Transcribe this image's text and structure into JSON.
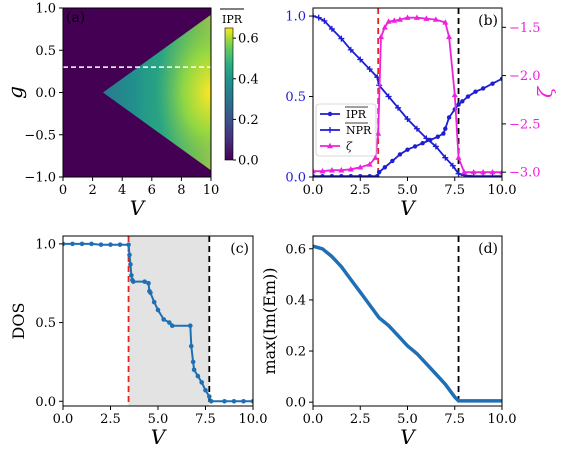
{
  "chart_data": [
    {
      "panel": "(a)",
      "type": "heatmap",
      "xlabel": "V",
      "ylabel": "g",
      "xlim": [
        0,
        10
      ],
      "ylim": [
        -1,
        1
      ],
      "xticks": [
        "0",
        "2",
        "4",
        "6",
        "8",
        "10"
      ],
      "yticks": [
        "−1.0",
        "−0.5",
        "0.0",
        "0.5",
        "1.0"
      ],
      "colorbar": {
        "label": "IPR",
        "ticks": [
          "0.0",
          "0.2",
          "0.4",
          "0.6"
        ],
        "range": [
          0,
          0.65
        ],
        "colormap": "viridis"
      },
      "region": {
        "description_points": {
          "vertex_V": 2.7,
          "edge_g_at_V10": 0.92
        },
        "max_value": 0.65
      },
      "dashed_line_g": 0.3,
      "dashed_color": "#ffffff"
    },
    {
      "panel": "(b)",
      "type": "line",
      "xlabel": "V",
      "ylabel_right": "ζ",
      "xlim": [
        0,
        10
      ],
      "ylim": [
        0,
        1.05
      ],
      "ylim_right": [
        -3.05,
        -1.3
      ],
      "xticks": [
        "0.0",
        "2.5",
        "5.0",
        "7.5",
        "10.0"
      ],
      "yticks": [
        "0.0",
        "0.5",
        "1.0"
      ],
      "yticks_right": [
        "−3.0",
        "−2.5",
        "−2.0",
        "−1.5"
      ],
      "legend": [
        "IPR",
        "NPR",
        "ζ"
      ],
      "legend_position": "lower-left",
      "vlines": [
        {
          "x": 3.45,
          "color": "#e8241c"
        },
        {
          "x": 7.7,
          "color": "#000000"
        }
      ],
      "series": [
        {
          "name": "IPR",
          "color": "#1d1dd6",
          "marker": "dot",
          "x": [
            0,
            0.5,
            1,
            1.5,
            2,
            2.5,
            3,
            3.4,
            3.5,
            3.8,
            4.2,
            4.6,
            5,
            5.4,
            5.8,
            6.2,
            6.6,
            6.9,
            7.0,
            7.2,
            7.5,
            7.7,
            7.9,
            8.2,
            8.6,
            9,
            9.5,
            10
          ],
          "y": [
            0.005,
            0.005,
            0.005,
            0.005,
            0.005,
            0.005,
            0.005,
            0.005,
            0.03,
            0.06,
            0.1,
            0.14,
            0.17,
            0.19,
            0.21,
            0.23,
            0.25,
            0.27,
            0.3,
            0.37,
            0.42,
            0.45,
            0.47,
            0.5,
            0.53,
            0.55,
            0.58,
            0.61
          ]
        },
        {
          "name": "NPR",
          "color": "#1d1dd6",
          "marker": "plus",
          "x": [
            0,
            0.3,
            0.6,
            1,
            1.5,
            2,
            2.5,
            3,
            3.4,
            3.5,
            4,
            4.5,
            5,
            5.5,
            6,
            6.5,
            7,
            7.4,
            7.7,
            8,
            8.5,
            9,
            9.5,
            10
          ],
          "y": [
            1.0,
            0.99,
            0.97,
            0.92,
            0.86,
            0.79,
            0.73,
            0.67,
            0.62,
            0.57,
            0.5,
            0.43,
            0.36,
            0.3,
            0.24,
            0.19,
            0.12,
            0.07,
            0.02,
            0.01,
            0.005,
            0.005,
            0.005,
            0.005
          ]
        },
        {
          "name": "ζ",
          "color": "#ee22dd",
          "marker": "triangle",
          "axis": "right",
          "x": [
            0,
            0.5,
            1,
            1.5,
            2,
            2.5,
            3,
            3.3,
            3.45,
            3.6,
            3.8,
            4,
            4.3,
            4.6,
            5,
            5.5,
            6,
            6.5,
            7,
            7.2,
            7.5,
            7.7,
            8,
            8.5,
            9,
            9.5,
            10
          ],
          "y": [
            -2.99,
            -2.99,
            -2.98,
            -2.98,
            -2.97,
            -2.95,
            -2.92,
            -2.85,
            -2.6,
            -1.6,
            -1.5,
            -1.44,
            -1.43,
            -1.42,
            -1.4,
            -1.4,
            -1.41,
            -1.42,
            -1.45,
            -1.6,
            -2.2,
            -2.85,
            -3.0,
            -3.0,
            -3.0,
            -3.0,
            -3.0
          ]
        }
      ]
    },
    {
      "panel": "(c)",
      "type": "line",
      "xlabel": "V",
      "ylabel": "DOS",
      "xlim": [
        0,
        10
      ],
      "ylim": [
        -0.03,
        1.05
      ],
      "xticks": [
        "0.0",
        "2.5",
        "5.0",
        "7.5",
        "10.0"
      ],
      "yticks": [
        "0.0",
        "0.5",
        "1.0"
      ],
      "shaded_region": [
        3.45,
        7.7
      ],
      "vlines": [
        {
          "x": 3.45,
          "color": "#e8241c"
        },
        {
          "x": 7.7,
          "color": "#000000"
        }
      ],
      "series": [
        {
          "color": "#1f6fb5",
          "x": [
            0,
            0.5,
            1,
            1.5,
            2,
            2.5,
            3,
            3.45,
            3.5,
            3.55,
            3.6,
            3.65,
            3.7,
            4.3,
            4.5,
            4.55,
            4.6,
            4.8,
            5.0,
            5.3,
            5.6,
            5.75,
            6.7,
            6.75,
            6.85,
            6.9,
            7.1,
            7.3,
            7.5,
            7.7,
            7.8,
            8.5,
            9,
            9.5,
            10
          ],
          "y": [
            1.0,
            1.0,
            1.0,
            1.0,
            0.995,
            0.995,
            0.995,
            0.995,
            0.93,
            0.87,
            0.8,
            0.77,
            0.76,
            0.76,
            0.75,
            0.7,
            0.69,
            0.63,
            0.58,
            0.52,
            0.5,
            0.48,
            0.48,
            0.35,
            0.25,
            0.2,
            0.16,
            0.12,
            0.07,
            0.03,
            0.0,
            0.0,
            0.0,
            0.0,
            0.0
          ]
        }
      ]
    },
    {
      "panel": "(d)",
      "type": "line",
      "xlabel": "V",
      "ylabel": "max(Im(Em))",
      "xlim": [
        0,
        10
      ],
      "ylim": [
        -0.015,
        0.65
      ],
      "xticks": [
        "0.0",
        "2.5",
        "5.0",
        "7.5",
        "10.0"
      ],
      "yticks": [
        "0.0",
        "0.2",
        "0.4",
        "0.6"
      ],
      "vlines": [
        {
          "x": 7.7,
          "color": "#000000"
        }
      ],
      "series": [
        {
          "color": "#1f6fb5",
          "x": [
            0,
            0.5,
            1,
            1.5,
            2,
            2.5,
            3,
            3.5,
            4,
            4.5,
            5,
            5.5,
            6,
            6.5,
            7,
            7.5,
            7.7,
            8,
            8.5,
            9,
            9.5,
            10
          ],
          "y": [
            0.61,
            0.6,
            0.57,
            0.53,
            0.48,
            0.43,
            0.38,
            0.33,
            0.3,
            0.26,
            0.22,
            0.19,
            0.15,
            0.11,
            0.07,
            0.02,
            0.005,
            0.005,
            0.005,
            0.005,
            0.005,
            0.005
          ]
        }
      ]
    }
  ]
}
